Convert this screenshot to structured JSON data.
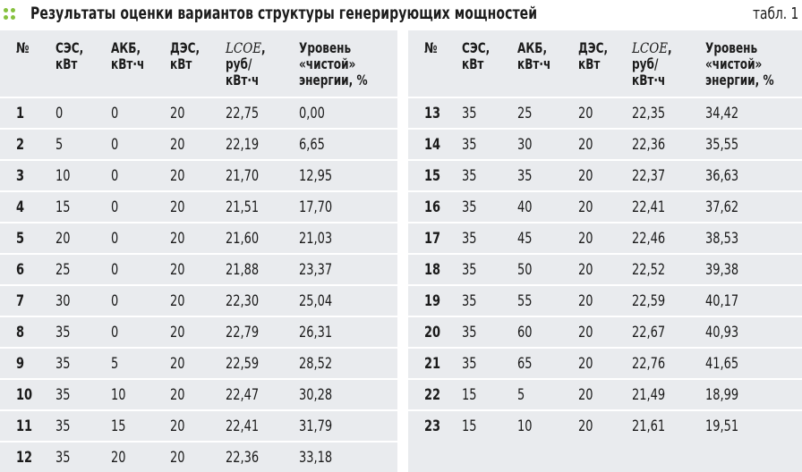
{
  "title": "Результаты оценки вариантов структуры генерирующих мощностей",
  "table_label": "табл. 1",
  "colors": {
    "accent": "#86c13e",
    "panel_bg": "#e9ebee"
  },
  "header": {
    "num": "№",
    "ses": [
      "СЭС,",
      "кВт"
    ],
    "akb": [
      "АКБ,",
      "кВт·ч"
    ],
    "des": [
      "ДЭС,",
      "кВт"
    ],
    "lcoe": [
      "LCOE,",
      "руб/",
      "кВт·ч"
    ],
    "clean": [
      "Уровень",
      "«чистой»",
      "энергии, %"
    ]
  },
  "rows_left": [
    [
      "1",
      "0",
      "0",
      "20",
      "22,75",
      "0,00"
    ],
    [
      "2",
      "5",
      "0",
      "20",
      "22,19",
      "6,65"
    ],
    [
      "3",
      "10",
      "0",
      "20",
      "21,70",
      "12,95"
    ],
    [
      "4",
      "15",
      "0",
      "20",
      "21,51",
      "17,70"
    ],
    [
      "5",
      "20",
      "0",
      "20",
      "21,60",
      "21,03"
    ],
    [
      "6",
      "25",
      "0",
      "20",
      "21,88",
      "23,37"
    ],
    [
      "7",
      "30",
      "0",
      "20",
      "22,30",
      "25,04"
    ],
    [
      "8",
      "35",
      "0",
      "20",
      "22,79",
      "26,31"
    ],
    [
      "9",
      "35",
      "5",
      "20",
      "22,59",
      "28,52"
    ],
    [
      "10",
      "35",
      "10",
      "20",
      "22,47",
      "30,28"
    ],
    [
      "11",
      "35",
      "15",
      "20",
      "22,41",
      "31,79"
    ],
    [
      "12",
      "35",
      "20",
      "20",
      "22,36",
      "33,18"
    ]
  ],
  "rows_right": [
    [
      "13",
      "35",
      "25",
      "20",
      "22,35",
      "34,42"
    ],
    [
      "14",
      "35",
      "30",
      "20",
      "22,36",
      "35,55"
    ],
    [
      "15",
      "35",
      "35",
      "20",
      "22,37",
      "36,63"
    ],
    [
      "16",
      "35",
      "40",
      "20",
      "22,41",
      "37,62"
    ],
    [
      "17",
      "35",
      "45",
      "20",
      "22,46",
      "38,53"
    ],
    [
      "18",
      "35",
      "50",
      "20",
      "22,52",
      "39,38"
    ],
    [
      "19",
      "35",
      "55",
      "20",
      "22,59",
      "40,17"
    ],
    [
      "20",
      "35",
      "60",
      "20",
      "22,67",
      "40,93"
    ],
    [
      "21",
      "35",
      "65",
      "20",
      "22,76",
      "41,65"
    ],
    [
      "22",
      "15",
      "5",
      "20",
      "21,49",
      "18,99"
    ],
    [
      "23",
      "15",
      "10",
      "20",
      "21,61",
      "19,51"
    ]
  ]
}
